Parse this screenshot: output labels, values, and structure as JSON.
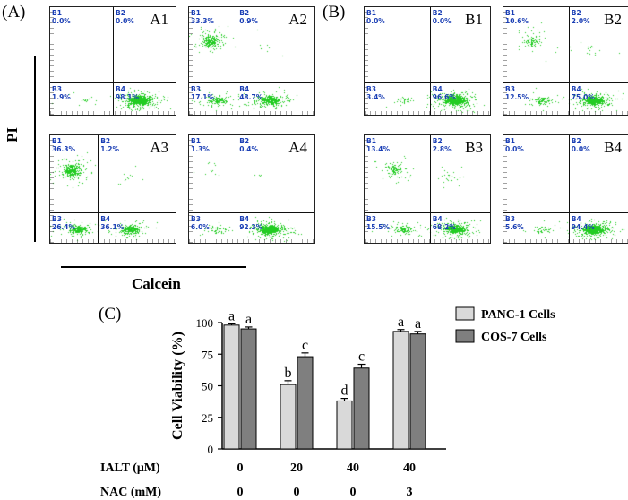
{
  "panels": {
    "A": {
      "label": "(A)"
    },
    "B": {
      "label": "(B)"
    },
    "C": {
      "label": "(C)"
    }
  },
  "flow_axes": {
    "y_label": "PI",
    "x_label": "Calcein"
  },
  "flow_plots": [
    {
      "id": "A1",
      "label": "A1",
      "q": {
        "B1": "0.0%",
        "B2": "0.0%",
        "B3": "1.9%",
        "B4": "98.1%"
      }
    },
    {
      "id": "A2",
      "label": "A2",
      "q": {
        "B1": "33.3%",
        "B2": "0.9%",
        "B3": "17.1%",
        "B4": "48.7%"
      }
    },
    {
      "id": "A3",
      "label": "A3",
      "q": {
        "B1": "36.3%",
        "B2": "1.2%",
        "B3": "26.4%",
        "B4": "36.1%"
      }
    },
    {
      "id": "A4",
      "label": "A4",
      "q": {
        "B1": "1.3%",
        "B2": "0.4%",
        "B3": "6.0%",
        "B4": "92.3%"
      }
    },
    {
      "id": "B1",
      "label": "B1",
      "q": {
        "B1": "0.0%",
        "B2": "0.0%",
        "B3": "3.4%",
        "B4": "96.6%"
      }
    },
    {
      "id": "B2",
      "label": "B2",
      "q": {
        "B1": "10.6%",
        "B2": "2.0%",
        "B3": "12.5%",
        "B4": "75.0%"
      }
    },
    {
      "id": "B3",
      "label": "B3",
      "q": {
        "B1": "13.4%",
        "B2": "2.8%",
        "B3": "15.5%",
        "B4": "68.2%"
      }
    },
    {
      "id": "B4",
      "label": "B4",
      "q": {
        "B1": "0.0%",
        "B2": "0.0%",
        "B3": "5.6%",
        "B4": "94.4%"
      }
    }
  ],
  "quadrant_names": [
    "B1",
    "B2",
    "B3",
    "B4"
  ],
  "point_color": "#22cc22",
  "quadrant_text_color": "#1b3fb5",
  "chart_data": {
    "type": "bar",
    "ylabel": "Cell Viability (%)",
    "ylim": [
      0,
      100
    ],
    "yticks": [
      0,
      25,
      50,
      75,
      100
    ],
    "groups": 4,
    "series": [
      {
        "name": "PANC-1 Cells",
        "color": "#d9d9d9",
        "values": [
          98,
          51,
          38,
          93
        ],
        "errors": [
          1,
          3,
          2,
          1.5
        ],
        "letters": [
          "a",
          "b",
          "d",
          "a"
        ]
      },
      {
        "name": "COS-7 Cells",
        "color": "#7f7f7f",
        "values": [
          95,
          73,
          64,
          91
        ],
        "errors": [
          1.5,
          3,
          3,
          2
        ],
        "letters": [
          "a",
          "c",
          "c",
          "a"
        ]
      }
    ],
    "treatments": [
      {
        "name": "IALT (μM)",
        "values": [
          "0",
          "20",
          "40",
          "40"
        ]
      },
      {
        "name": "NAC (mM)",
        "values": [
          "0",
          "0",
          "0",
          "3"
        ]
      }
    ]
  }
}
